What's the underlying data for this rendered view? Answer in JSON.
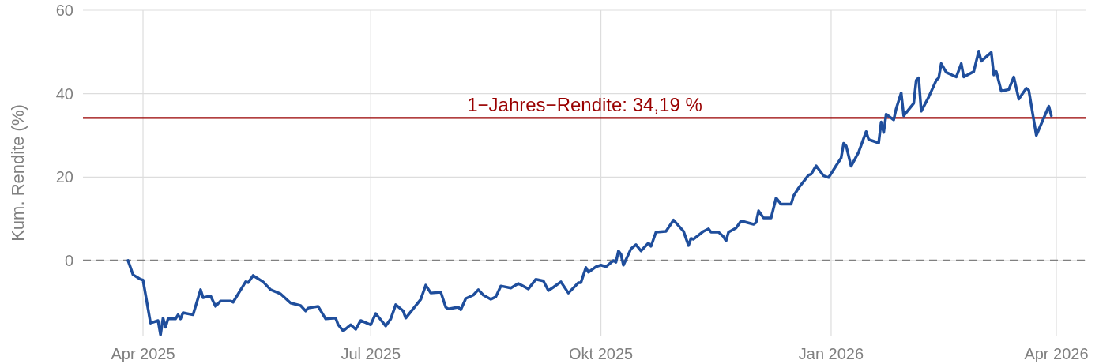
{
  "chart_data": {
    "type": "line",
    "ylabel": "Kum. Rendite (%)",
    "grid": true,
    "marker": "none",
    "line_style": "solid",
    "xlim": [
      "2025-03-08",
      "2026-04-13"
    ],
    "ylim": [
      -18,
      60
    ],
    "yticks": [
      0,
      20,
      40,
      60
    ],
    "xticks": [
      {
        "value": "2025-04-01",
        "label": "Apr 2025"
      },
      {
        "value": "2025-07-01",
        "label": "Jul 2025"
      },
      {
        "value": "2025-10-01",
        "label": "Okt 2025"
      },
      {
        "value": "2026-01-01",
        "label": "Jan 2026"
      },
      {
        "value": "2026-04-01",
        "label": "Apr 2026"
      }
    ],
    "ref_lines": [
      {
        "axis": "y",
        "value": 34.19,
        "label": "1−Jahres−Rendite: 34,19 %",
        "color": "#990000",
        "line_style": "solid"
      },
      {
        "axis": "y",
        "value": 0,
        "color": "#808080",
        "line_style": "dashed"
      }
    ],
    "series": [
      {
        "color": "#1f4e9c",
        "x": [
          "2025-03-26",
          "2025-03-28",
          "2025-03-31",
          "2025-04-01",
          "2025-04-04",
          "2025-04-07",
          "2025-04-08",
          "2025-04-09",
          "2025-04-10",
          "2025-04-11",
          "2025-04-14",
          "2025-04-15",
          "2025-04-16",
          "2025-04-17",
          "2025-04-21",
          "2025-04-24",
          "2025-04-25",
          "2025-04-28",
          "2025-04-30",
          "2025-05-02",
          "2025-05-06",
          "2025-05-07",
          "2025-05-12",
          "2025-05-13",
          "2025-05-15",
          "2025-05-19",
          "2025-05-22",
          "2025-05-26",
          "2025-05-30",
          "2025-06-03",
          "2025-06-05",
          "2025-06-06",
          "2025-06-10",
          "2025-06-13",
          "2025-06-17",
          "2025-06-18",
          "2025-06-20",
          "2025-06-23",
          "2025-06-25",
          "2025-06-27",
          "2025-07-01",
          "2025-07-03",
          "2025-07-07",
          "2025-07-09",
          "2025-07-11",
          "2025-07-14",
          "2025-07-15",
          "2025-07-17",
          "2025-07-21",
          "2025-07-23",
          "2025-07-25",
          "2025-07-29",
          "2025-07-31",
          "2025-08-01",
          "2025-08-05",
          "2025-08-06",
          "2025-08-08",
          "2025-08-11",
          "2025-08-13",
          "2025-08-15",
          "2025-08-18",
          "2025-08-20",
          "2025-08-22",
          "2025-08-26",
          "2025-08-29",
          "2025-09-02",
          "2025-09-05",
          "2025-09-08",
          "2025-09-10",
          "2025-09-12",
          "2025-09-15",
          "2025-09-18",
          "2025-09-22",
          "2025-09-23",
          "2025-09-25",
          "2025-09-26",
          "2025-09-29",
          "2025-10-01",
          "2025-10-03",
          "2025-10-06",
          "2025-10-07",
          "2025-10-08",
          "2025-10-09",
          "2025-10-10",
          "2025-10-13",
          "2025-10-15",
          "2025-10-17",
          "2025-10-20",
          "2025-10-21",
          "2025-10-23",
          "2025-10-27",
          "2025-10-30",
          "2025-11-03",
          "2025-11-05",
          "2025-11-06",
          "2025-11-07",
          "2025-11-11",
          "2025-11-13",
          "2025-11-14",
          "2025-11-17",
          "2025-11-19",
          "2025-11-20",
          "2025-11-21",
          "2025-11-24",
          "2025-11-26",
          "2025-12-01",
          "2025-12-02",
          "2025-12-03",
          "2025-12-05",
          "2025-12-08",
          "2025-12-10",
          "2025-12-12",
          "2025-12-16",
          "2025-12-17",
          "2025-12-19",
          "2025-12-23",
          "2025-12-24",
          "2025-12-26",
          "2025-12-29",
          "2025-12-31",
          "2026-01-05",
          "2026-01-06",
          "2026-01-07",
          "2026-01-09",
          "2026-01-12",
          "2026-01-15",
          "2026-01-16",
          "2026-01-20",
          "2026-01-21",
          "2026-01-22",
          "2026-01-23",
          "2026-01-26",
          "2026-01-27",
          "2026-01-29",
          "2026-01-30",
          "2026-02-03",
          "2026-02-04",
          "2026-02-05",
          "2026-02-06",
          "2026-02-09",
          "2026-02-12",
          "2026-02-13",
          "2026-02-14",
          "2026-02-16",
          "2026-02-20",
          "2026-02-22",
          "2026-02-23",
          "2026-02-27",
          "2026-03-01",
          "2026-03-02",
          "2026-03-06",
          "2026-03-07",
          "2026-03-08",
          "2026-03-10",
          "2026-03-13",
          "2026-03-15",
          "2026-03-17",
          "2026-03-20",
          "2026-03-21",
          "2026-03-24",
          "2026-03-29",
          "2026-03-30"
        ],
        "values": [
          0,
          -3.4,
          -4.5,
          -4.7,
          -15,
          -14.4,
          -17.8,
          -13.8,
          -16,
          -14,
          -14,
          -13,
          -14,
          -12.5,
          -13,
          -7,
          -8.9,
          -8.5,
          -11,
          -9.7,
          -9.7,
          -10,
          -5.1,
          -5.3,
          -3.6,
          -5.1,
          -7,
          -8,
          -10.2,
          -10.8,
          -12.1,
          -11.4,
          -11,
          -14,
          -13.8,
          -15.4,
          -16.9,
          -15.4,
          -16.5,
          -14.4,
          -15.4,
          -12.7,
          -15.7,
          -14,
          -10.6,
          -12.1,
          -13.8,
          -12.3,
          -9.3,
          -5.9,
          -7.8,
          -7.6,
          -11.2,
          -11.6,
          -11.2,
          -11.8,
          -9.1,
          -8.3,
          -7,
          -8.3,
          -9.3,
          -8.7,
          -6.1,
          -6.6,
          -5.5,
          -6.8,
          -4.5,
          -4.9,
          -7.2,
          -6.4,
          -5.1,
          -7.8,
          -5.3,
          -5.3,
          -1.7,
          -2.8,
          -1.5,
          -1.1,
          -1.5,
          0,
          -0.4,
          2.3,
          1.5,
          -1.1,
          2.8,
          3.8,
          2.3,
          4.2,
          3.4,
          6.8,
          7,
          9.7,
          7,
          3.6,
          5.3,
          5.1,
          7,
          7.6,
          6.8,
          6.8,
          5.7,
          4.7,
          6.8,
          7.8,
          9.5,
          8.7,
          9.1,
          11.9,
          10.2,
          10.2,
          15,
          13.5,
          13.5,
          15.5,
          17.4,
          20.5,
          20.7,
          22.7,
          20.3,
          19.9,
          24.6,
          28.1,
          27.5,
          22.6,
          26,
          30.9,
          29,
          28.2,
          33.2,
          30.7,
          35.1,
          33.7,
          36.4,
          40.2,
          34.7,
          37.7,
          43.2,
          43.8,
          35.8,
          39.2,
          43.2,
          43.8,
          47.2,
          45.1,
          44,
          47.2,
          44,
          45.3,
          50.2,
          47.8,
          49.9,
          44.5,
          45.3,
          40.6,
          41,
          44,
          38.7,
          41.3,
          40.8,
          30,
          37,
          34.7
        ]
      }
    ]
  }
}
